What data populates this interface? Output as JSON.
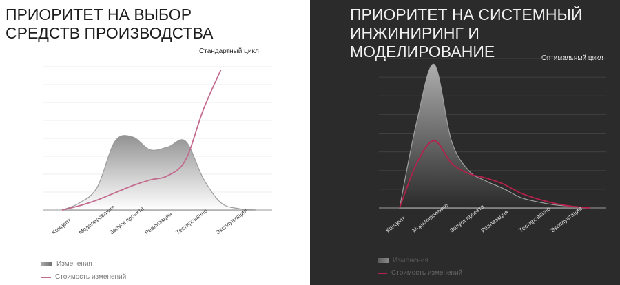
{
  "chart_data": [
    {
      "type": "area",
      "title": "ПРИОРИТЕТ НА ВЫБОР СРЕДСТВ ПРОИЗВОДСТВА",
      "subtitle": "Стандартный цикл",
      "categories": [
        "Концепт",
        "Моделирование",
        "Запуск проекта",
        "Реализация",
        "Тестирование",
        "Эксплуатация"
      ],
      "x": [
        0,
        0.5,
        1,
        1.5,
        2,
        2.5,
        3,
        3.5,
        4,
        4.5,
        5,
        5.5
      ],
      "ylim": [
        0,
        100
      ],
      "grid": true,
      "series": [
        {
          "name": "Изменения",
          "kind": "area",
          "color": "#8c8c8c",
          "values": [
            0,
            5,
            16,
            48,
            51,
            42,
            44,
            48,
            22,
            5,
            1,
            0
          ]
        },
        {
          "name": "Стоимость изменений",
          "kind": "line",
          "color": "#c36b8e",
          "values": [
            0,
            3,
            7,
            12,
            17,
            21,
            24,
            35,
            70,
            98,
            0,
            0
          ]
        }
      ],
      "legend": "bottom-left",
      "background": "#ffffff"
    },
    {
      "type": "area",
      "title": "ПРИОРИТЕТ НА СИСТЕМНЫЙ ИНЖИНИРИНГ И МОДЕЛИРОВАНИЕ",
      "subtitle": "Оптимальный цикл",
      "categories": [
        "Концепт",
        "Моделирование",
        "Запуск проекта",
        "Реализация",
        "Тестирование",
        "Эксплуатация"
      ],
      "x": [
        0,
        0.5,
        1,
        1.5,
        2,
        2.5,
        3,
        3.5,
        4,
        4.5,
        5,
        5.5
      ],
      "ylim": [
        0,
        100
      ],
      "grid": true,
      "series": [
        {
          "name": "Изменения",
          "kind": "area",
          "color": "#9a9a9a",
          "values": [
            0,
            58,
            96,
            45,
            25,
            18,
            13,
            7,
            4,
            2,
            1,
            0
          ]
        },
        {
          "name": "Стоимость изменений",
          "kind": "line",
          "color": "#b5204c",
          "values": [
            0,
            30,
            45,
            30,
            23,
            20,
            16,
            10,
            6,
            3,
            1,
            0
          ]
        }
      ],
      "legend": "bottom-left",
      "background": "#2b2b2b"
    }
  ],
  "legend_left": {
    "series1": "Изменения",
    "series2": "Стоимость изменений"
  },
  "legend_right": {
    "series1": "Изменения",
    "series2": "Стоимость изменений"
  }
}
